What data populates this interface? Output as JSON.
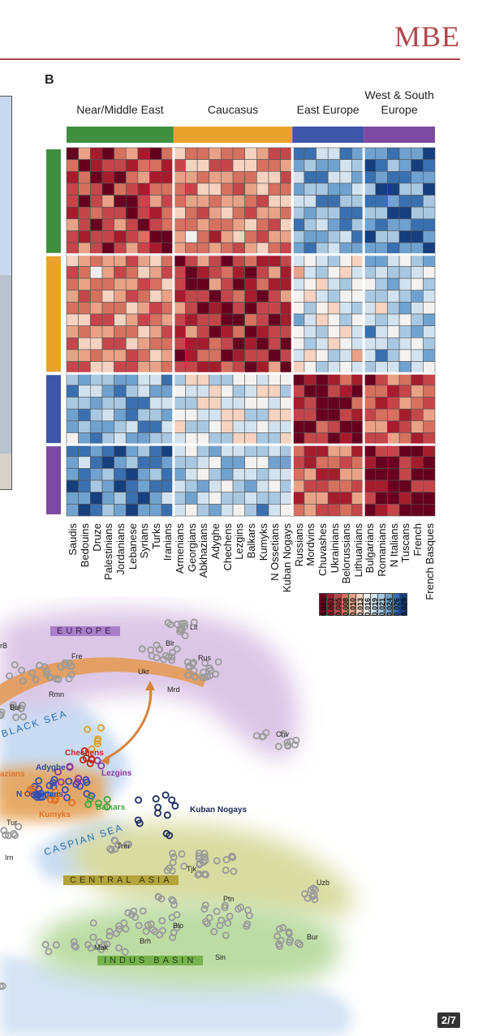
{
  "journal": "MBE",
  "panel_label": "B",
  "page_indicator": "2/7",
  "heatmap": {
    "groups": [
      {
        "name": "Near/Middle East",
        "color": "#3f8f3f",
        "count": 9
      },
      {
        "name": "Caucasus",
        "color": "#e9a22b",
        "count": 10
      },
      {
        "name": "East Europe",
        "color": "#3e56a8",
        "count": 6
      },
      {
        "name": "West & South Europe",
        "color": "#7c4aa0",
        "count": 6
      }
    ],
    "group_header_lines": [
      [
        "Near/Middle East"
      ],
      [
        "Caucasus"
      ],
      [
        "East Europe"
      ],
      [
        "West & South",
        "Europe"
      ]
    ],
    "populations": [
      "Saudis",
      "Bedouins",
      "Druze",
      "Palestinians",
      "Jordanians",
      "Lebanese",
      "Syrians",
      "Turks",
      "Iranians",
      "Armenians",
      "Georgians",
      "Abkhazians",
      "Adyghe",
      "Chechens",
      "Lezgins",
      "Balkars",
      "Kumyks",
      "N Ossetians",
      "Kuban Nogays",
      "Russians",
      "Mordvins",
      "Chuvashes",
      "Ukrainians",
      "Belorussians",
      "Lithuanians",
      "Bulgarians",
      "Romanians",
      "N Italians",
      "Tuscans",
      "French",
      "French Basques"
    ],
    "color_scale": {
      "colors": [
        "#67001f",
        "#a51c2d",
        "#c4464a",
        "#d6705f",
        "#e9a287",
        "#f6d2c0",
        "#f4f2f0",
        "#d2e2ef",
        "#a8c8e2",
        "#6fa2cf",
        "#3a70b0",
        "#163f7d"
      ],
      "labels": [
        "0.001",
        "0.003",
        "0.005",
        "0.008",
        "0.010",
        "0.013",
        "0.016",
        "0.019",
        "0.021",
        "0.024",
        "0.026",
        "0.029"
      ]
    }
  },
  "map": {
    "regions": [
      "EUROPE",
      "CENTRAL ASIA",
      "INDUS BASIN"
    ],
    "seas": [
      "BLACK SEA",
      "CASPIAN SEA"
    ],
    "site_labels": [
      "Lit",
      "Blr",
      "Rus",
      "Fre",
      "Ukr",
      "Mrd",
      "Rmn",
      "Bul",
      "Chv",
      "Tur",
      "Irn",
      "Trm",
      "Tjk",
      "Uzb",
      "Ptn",
      "Blo",
      "Brh",
      "Mak",
      "Sin",
      "Bur",
      "rB"
    ],
    "population_labels": [
      {
        "name": "Chechens",
        "color": "#c0281e"
      },
      {
        "name": "Adyghe",
        "color": "#2b4da0"
      },
      {
        "name": "Lezgins",
        "color": "#8a3a9c"
      },
      {
        "name": "N Ossetians",
        "color": "#2b4da0"
      },
      {
        "name": "Balkars",
        "color": "#3fa83f"
      },
      {
        "name": "Kumyks",
        "color": "#e0722b"
      },
      {
        "name": "Kuban Nogays",
        "color": "#1d2a5e"
      },
      {
        "name": "azians",
        "color": "#e0722b"
      }
    ]
  }
}
